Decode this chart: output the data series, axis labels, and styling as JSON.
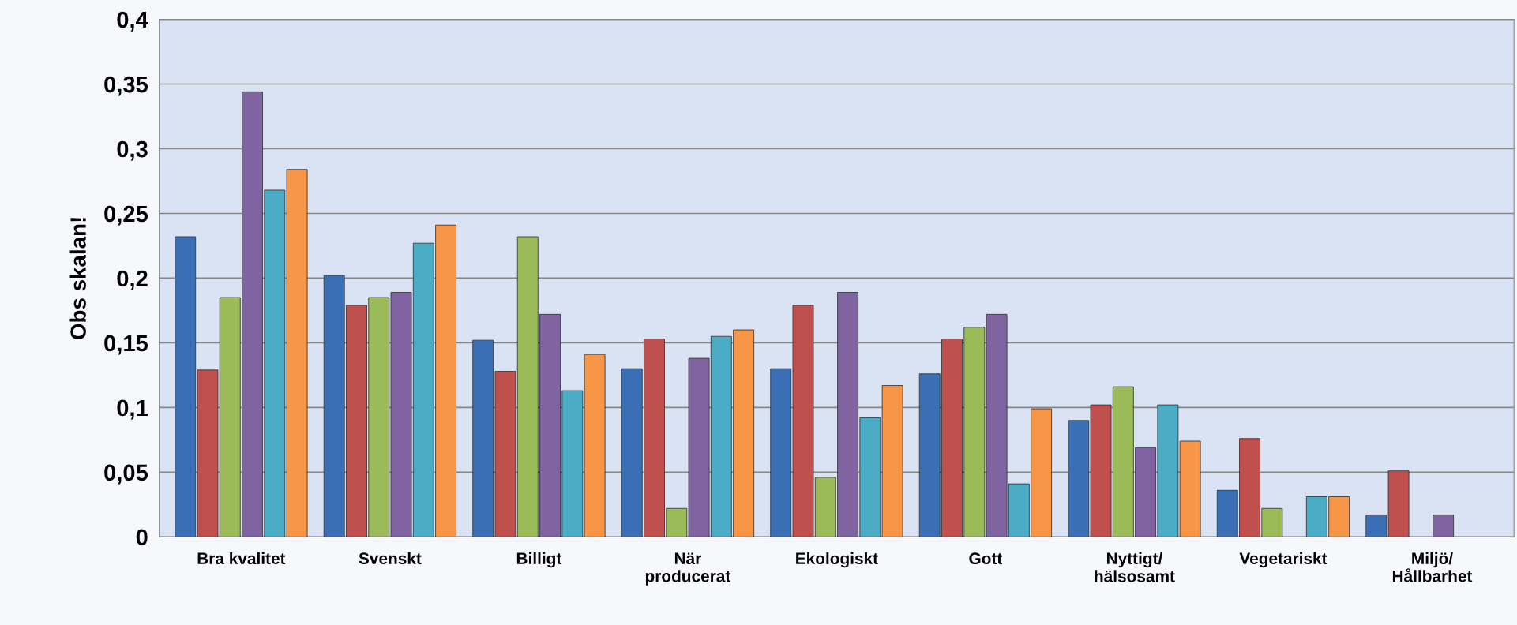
{
  "chart_data": {
    "type": "bar",
    "ylabel": "Obs skalan!",
    "categories": [
      "Bra kvalitet",
      "Svenskt",
      "Billigt",
      "När\nproducerat",
      "Ekologiskt",
      "Gott",
      "Nyttigt/\nhälsosamt",
      "Vegetariskt",
      "Miljö/\nHållbarhet"
    ],
    "series": [
      {
        "color": "#3a6fb5",
        "values": [
          0.232,
          0.202,
          0.152,
          0.13,
          0.13,
          0.126,
          0.09,
          0.036,
          0.017
        ]
      },
      {
        "color": "#c0504d",
        "values": [
          0.129,
          0.179,
          0.128,
          0.153,
          0.179,
          0.153,
          0.102,
          0.076,
          0.051
        ]
      },
      {
        "color": "#9bbb59",
        "values": [
          0.185,
          0.185,
          0.232,
          0.022,
          0.046,
          0.162,
          0.116,
          0.022,
          null
        ]
      },
      {
        "color": "#8064a2",
        "values": [
          0.344,
          0.189,
          0.172,
          0.138,
          0.189,
          0.172,
          0.069,
          null,
          0.017
        ]
      },
      {
        "color": "#4bacc6",
        "values": [
          0.268,
          0.227,
          0.113,
          0.155,
          0.092,
          0.041,
          0.102,
          0.031,
          null
        ]
      },
      {
        "color": "#f79646",
        "values": [
          0.284,
          0.241,
          0.141,
          0.16,
          0.117,
          0.099,
          0.074,
          0.031,
          null
        ]
      }
    ],
    "ylim": [
      0,
      0.4
    ],
    "yticks": [
      {
        "value": 0,
        "label": "0"
      },
      {
        "value": 0.05,
        "label": "0,05"
      },
      {
        "value": 0.1,
        "label": "0,1"
      },
      {
        "value": 0.15,
        "label": "0,15"
      },
      {
        "value": 0.2,
        "label": "0,2"
      },
      {
        "value": 0.25,
        "label": "0,25"
      },
      {
        "value": 0.3,
        "label": "0,3"
      },
      {
        "value": 0.35,
        "label": "0,35"
      },
      {
        "value": 0.4,
        "label": "0,4"
      }
    ],
    "grid": "y",
    "legend": false
  }
}
